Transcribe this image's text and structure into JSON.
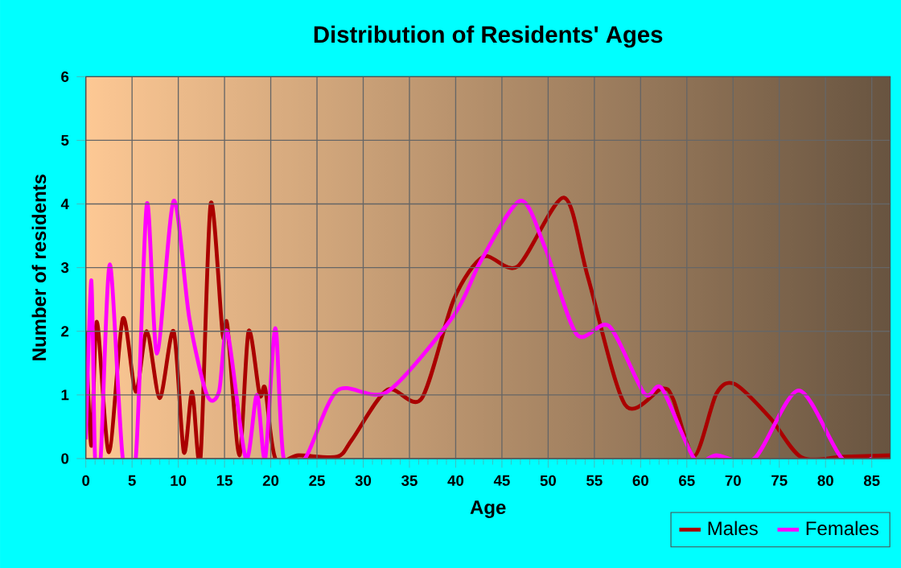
{
  "chart_data": {
    "type": "line",
    "title": "Distribution of Residents' Ages",
    "xlabel": "Age",
    "ylabel": "Number of residents",
    "series": [
      {
        "name": "Males",
        "color": "#aa0000",
        "x": [
          0,
          0.6,
          1.2,
          2.5,
          4,
          5.4,
          6.6,
          8,
          9.5,
          10.6,
          11.5,
          12.4,
          13.5,
          14.8,
          15.3,
          16.6,
          17.6,
          18.8,
          19.4,
          20.5,
          23,
          27.2,
          28.8,
          32.6,
          36.3,
          39.8,
          43,
          46.7,
          51.7,
          54.3,
          58.3,
          62.3,
          63.5,
          65.8,
          68.2,
          70.2,
          74,
          77.4,
          82,
          87
        ],
        "values": [
          2,
          0.2,
          2.15,
          0.1,
          2.2,
          1.05,
          2,
          0.95,
          2,
          0.1,
          1.05,
          0,
          4,
          1.95,
          2.1,
          0.05,
          2,
          1,
          1.1,
          0,
          0.05,
          0.03,
          0.3,
          1.08,
          0.94,
          2.5,
          3.17,
          3.02,
          4.1,
          2.85,
          0.85,
          1.1,
          0.94,
          0.04,
          1.02,
          1.17,
          0.64,
          0.02,
          0.03,
          0.05
        ]
      },
      {
        "name": "Females",
        "color": "#ff00ff",
        "x": [
          0,
          0.6,
          1,
          1.6,
          2.6,
          4,
          5.4,
          6.6,
          7.7,
          9.5,
          11.2,
          13.1,
          14.4,
          15.3,
          17.3,
          18.5,
          19.4,
          20.5,
          21.4,
          23.7,
          27.2,
          32.6,
          39.8,
          42.7,
          47,
          49.7,
          53.1,
          56.6,
          60.4,
          62.3,
          65.8,
          68.2,
          72.3,
          77.1,
          81.8,
          85
        ],
        "values": [
          0.3,
          2.8,
          0,
          0,
          3.05,
          0,
          0,
          4,
          1.65,
          4.05,
          2.2,
          1,
          1.05,
          2,
          0,
          1,
          0,
          2.05,
          0,
          0,
          1.07,
          1.05,
          2.25,
          3.1,
          4.05,
          3.3,
          1.95,
          2.08,
          1.02,
          1.1,
          0,
          0.05,
          0,
          1.07,
          0,
          0
        ]
      }
    ],
    "xlim": [
      0,
      87
    ],
    "xticks": [
      0,
      5,
      10,
      15,
      20,
      25,
      30,
      35,
      40,
      45,
      50,
      55,
      60,
      65,
      70,
      75,
      80,
      85
    ],
    "ylim": [
      0,
      6
    ],
    "yticks": [
      0,
      1,
      2,
      3,
      4,
      5,
      6
    ],
    "grid": true,
    "legend": "bottom right",
    "line_style": "solid",
    "marker": "none"
  }
}
